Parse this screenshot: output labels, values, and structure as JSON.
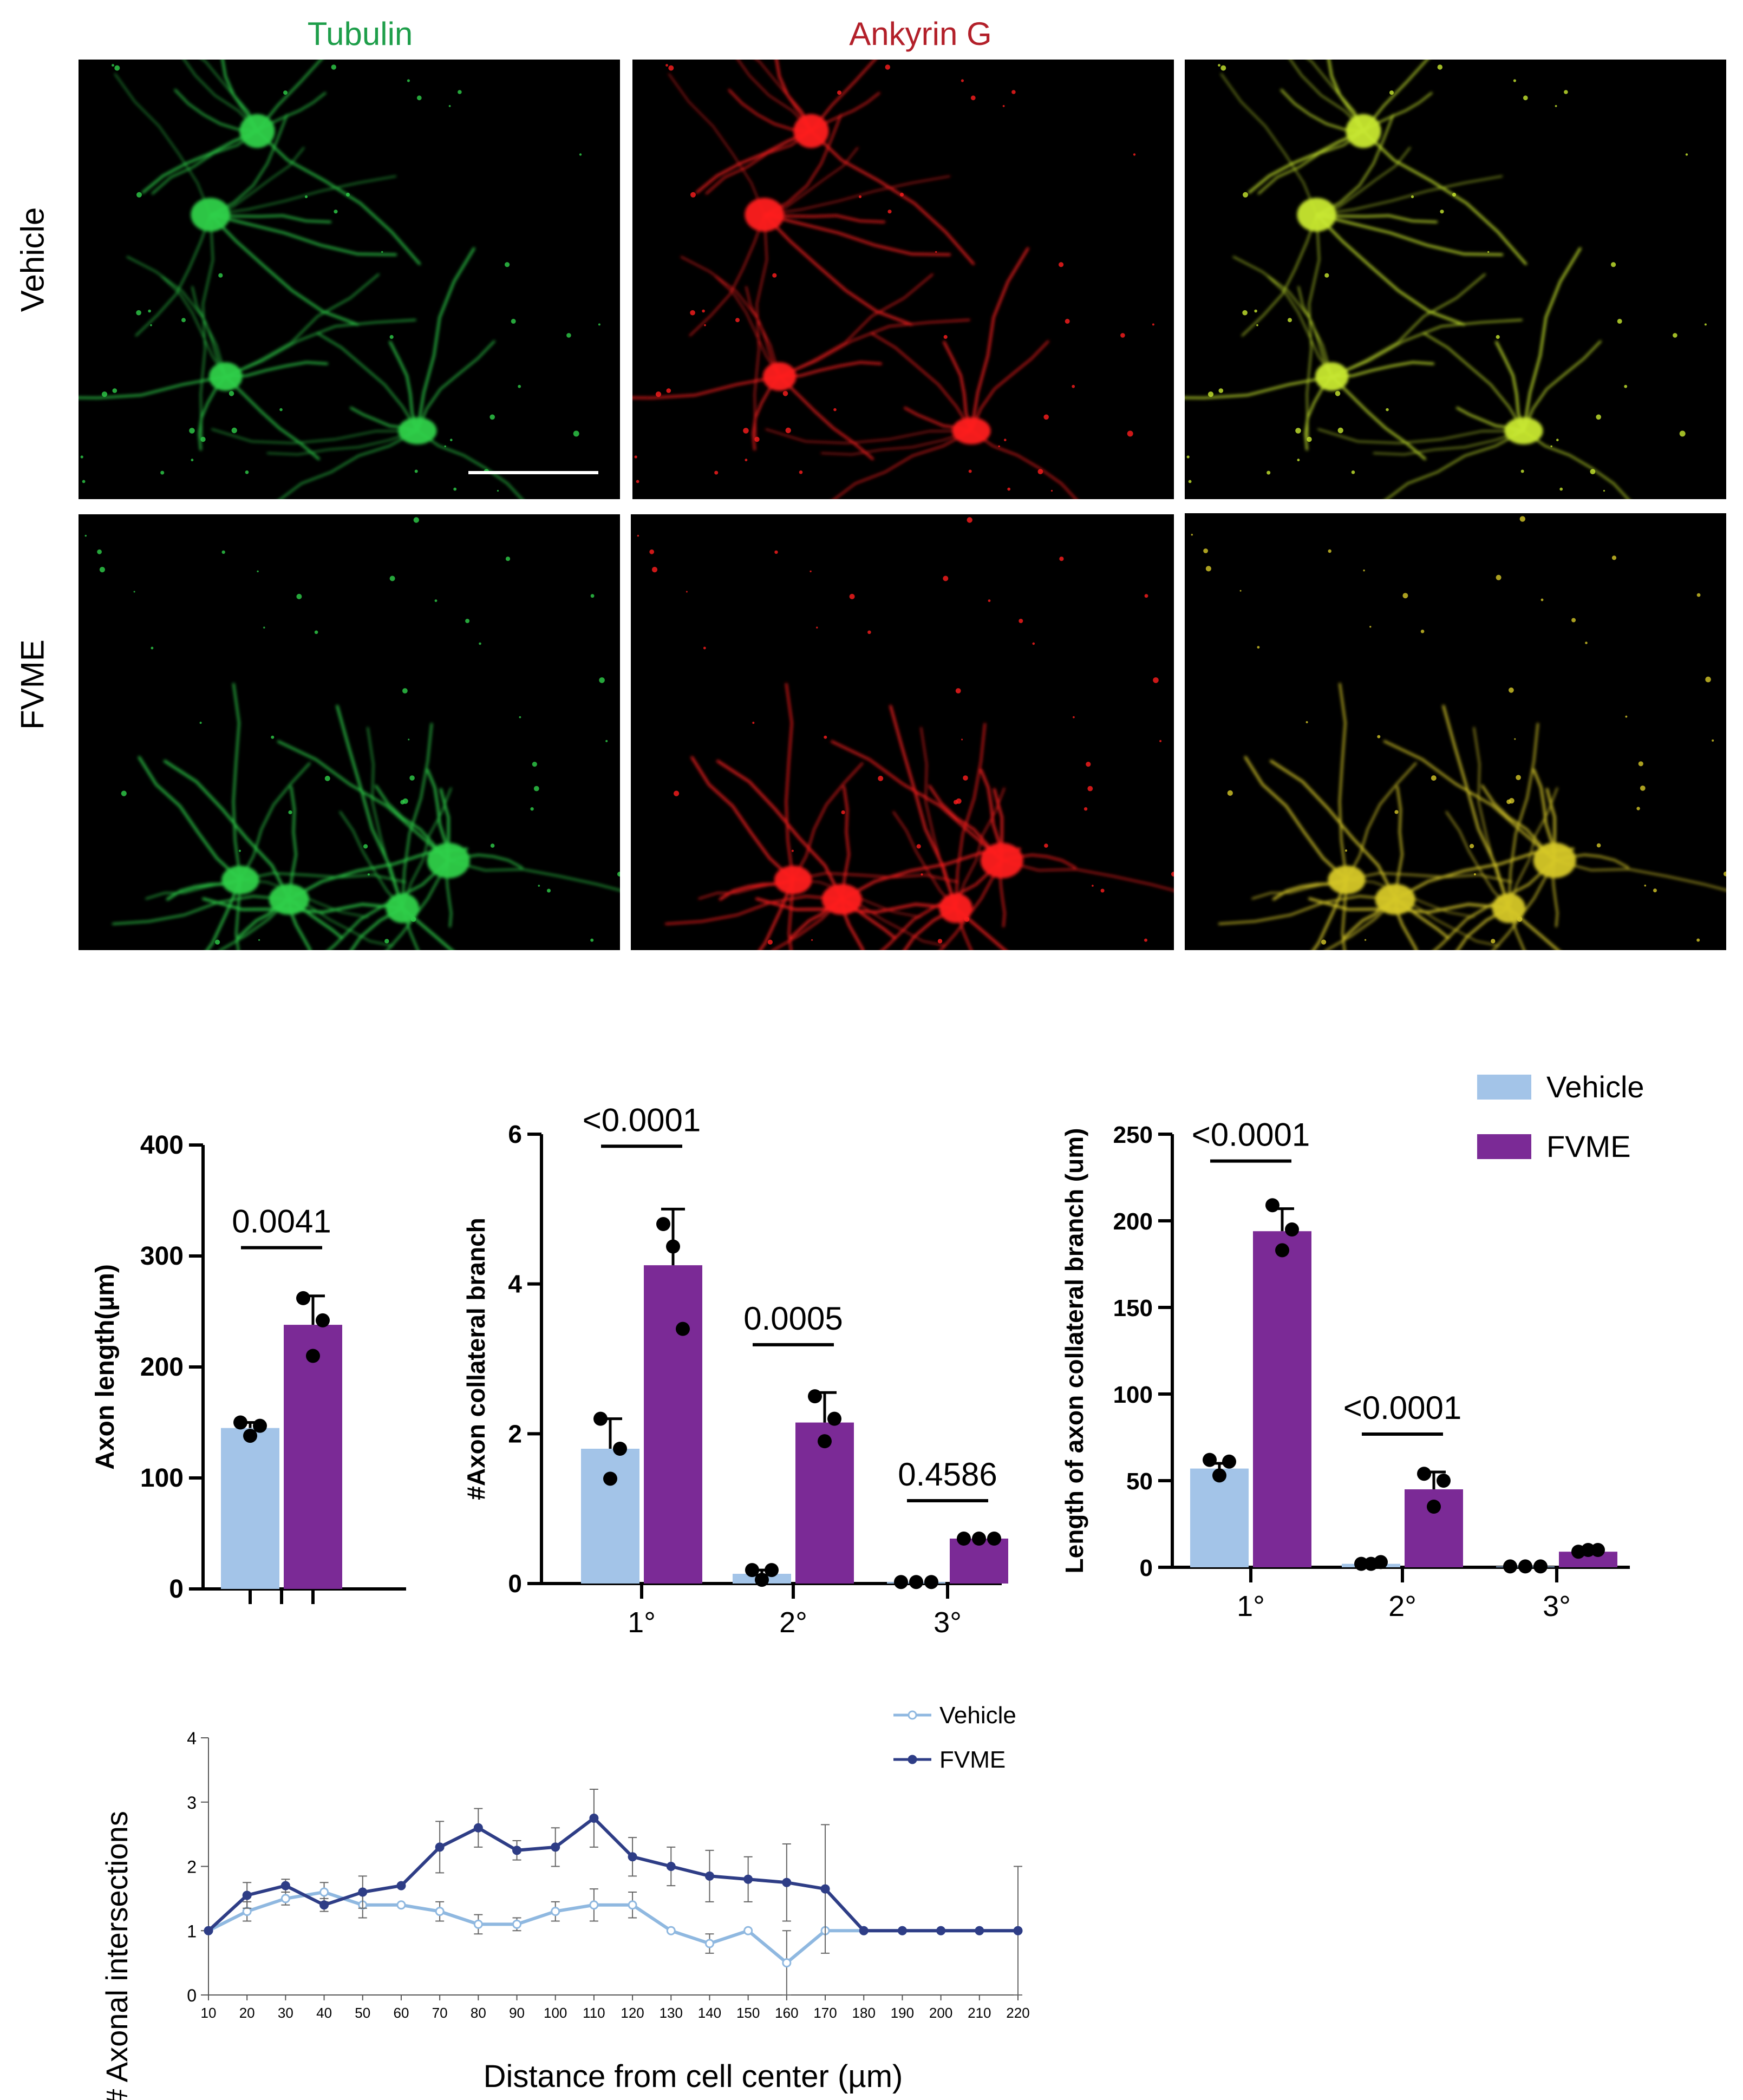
{
  "figure": {
    "column_titles": [
      "Tubulin",
      "Ankyrin G",
      ""
    ],
    "column_colors": [
      "#1e9e4a",
      "#b3202a"
    ],
    "row_labels": [
      "Vehicle",
      "FVME"
    ],
    "micrographs": [
      {
        "id": "vehicle-tubulin",
        "stain": "tubulin",
        "color": "#2fd04a"
      },
      {
        "id": "vehicle-ankyrin",
        "stain": "ankyrin-g",
        "color": "#ff1e1e"
      },
      {
        "id": "vehicle-merge",
        "stain": "merge",
        "color": "#c8e830"
      },
      {
        "id": "fvme-tubulin",
        "stain": "tubulin",
        "color": "#2fd04a"
      },
      {
        "id": "fvme-ankyrin",
        "stain": "ankyrin-g",
        "color": "#ff1e1e"
      },
      {
        "id": "fvme-merge",
        "stain": "merge",
        "color": "#c8e830"
      }
    ]
  },
  "colors": {
    "vehicle": "#a3c4e8",
    "fvme": "#7b2a96",
    "vehicle_line": "#8fb8e0",
    "fvme_line": "#2e3d86"
  },
  "legend": {
    "items": [
      "Vehicle",
      "FVME"
    ]
  },
  "chart_data": [
    {
      "id": "axon-length",
      "type": "bar",
      "ylabel": "Axon length(µm)",
      "ylim": [
        0,
        400
      ],
      "yticks": [
        "0",
        "100",
        "200",
        "300",
        "400"
      ],
      "categories": [
        ""
      ],
      "series": [
        {
          "name": "Vehicle",
          "values": [
            145
          ],
          "error": [
            5
          ],
          "points": [
            [
              150,
              138,
              147
            ]
          ]
        },
        {
          "name": "FVME",
          "values": [
            238
          ],
          "error": [
            26
          ],
          "points": [
            [
              262,
              210,
              242
            ]
          ]
        }
      ],
      "annotations": [
        {
          "label": "0.0041",
          "group": 0
        }
      ]
    },
    {
      "id": "axon-collateral-count",
      "type": "bar",
      "ylabel": "#Axon collateral branch",
      "ylim": [
        0,
        6
      ],
      "yticks": [
        "0",
        "2",
        "4",
        "6"
      ],
      "categories": [
        "1°",
        "2°",
        "3°"
      ],
      "series": [
        {
          "name": "Vehicle",
          "values": [
            1.8,
            0.13,
            0.02
          ],
          "error": [
            0.4,
            0.05,
            0
          ],
          "points": [
            [
              2.2,
              1.4,
              1.8
            ],
            [
              0.18,
              0.05,
              0.18
            ],
            [
              0.02,
              0.02,
              0.02
            ]
          ]
        },
        {
          "name": "FVME",
          "values": [
            4.25,
            2.15,
            0.6
          ],
          "error": [
            0.75,
            0.4,
            0
          ],
          "points": [
            [
              4.8,
              4.5,
              3.4
            ],
            [
              2.5,
              1.9,
              2.2
            ],
            [
              0.6,
              0.6,
              0.6
            ]
          ]
        }
      ],
      "annotations": [
        {
          "label": "<0.0001",
          "group": 0
        },
        {
          "label": "0.0005",
          "group": 1
        },
        {
          "label": "0.4586",
          "group": 2
        }
      ]
    },
    {
      "id": "axon-collateral-length",
      "type": "bar",
      "ylabel": "Length of axon collateral branch (um)",
      "ylim": [
        0,
        250
      ],
      "yticks": [
        "0",
        "50",
        "100",
        "150",
        "200",
        "250"
      ],
      "categories": [
        "1°",
        "2°",
        "3°"
      ],
      "series": [
        {
          "name": "Vehicle",
          "values": [
            57,
            2,
            0.5
          ],
          "error": [
            3,
            0,
            0
          ],
          "points": [
            [
              62,
              53,
              61
            ],
            [
              2,
              2,
              3
            ],
            [
              0.5,
              0.5,
              0.5
            ]
          ]
        },
        {
          "name": "FVME",
          "values": [
            194,
            45,
            9
          ],
          "error": [
            13,
            10,
            0
          ],
          "points": [
            [
              209,
              183,
              195
            ],
            [
              54,
              35,
              50
            ],
            [
              9,
              10,
              10
            ]
          ]
        }
      ],
      "annotations": [
        {
          "label": "<0.0001",
          "group": 0
        },
        {
          "label": "<0.0001",
          "group": 1
        }
      ]
    },
    {
      "id": "sholl",
      "type": "line",
      "xlabel": "Distance from cell center (µm)",
      "ylabel": "# Axonal intersections",
      "ylim": [
        0,
        4
      ],
      "yticks": [
        "0",
        "1",
        "2",
        "3",
        "4"
      ],
      "x": [
        10,
        20,
        30,
        40,
        50,
        60,
        70,
        80,
        90,
        100,
        110,
        120,
        130,
        140,
        150,
        160,
        170,
        180,
        190,
        200,
        210,
        220
      ],
      "series": [
        {
          "name": "Vehicle",
          "values": [
            1,
            1.3,
            1.5,
            1.6,
            1.4,
            1.4,
            1.3,
            1.1,
            1.1,
            1.3,
            1.4,
            1.4,
            1.0,
            0.8,
            1.0,
            0.5,
            1,
            1,
            1,
            1,
            1,
            1
          ],
          "error": [
            0,
            0.15,
            0.1,
            0.15,
            0.2,
            0,
            0.15,
            0.15,
            0.1,
            0.15,
            0.25,
            0.2,
            0,
            0.15,
            0,
            0.5,
            0,
            0,
            0,
            0,
            0,
            0
          ]
        },
        {
          "name": "FVME",
          "values": [
            1,
            1.55,
            1.7,
            1.4,
            1.6,
            1.7,
            2.3,
            2.6,
            2.25,
            2.3,
            2.75,
            2.15,
            2.0,
            1.85,
            1.8,
            1.75,
            1.65,
            1,
            1,
            1,
            1,
            1
          ],
          "error": [
            0,
            0.2,
            0.1,
            0.1,
            0.25,
            0,
            0.4,
            0.3,
            0.15,
            0.3,
            0.45,
            0.3,
            0.3,
            0.4,
            0.35,
            0.6,
            1.0,
            0,
            0,
            0,
            0,
            1
          ]
        }
      ]
    }
  ]
}
